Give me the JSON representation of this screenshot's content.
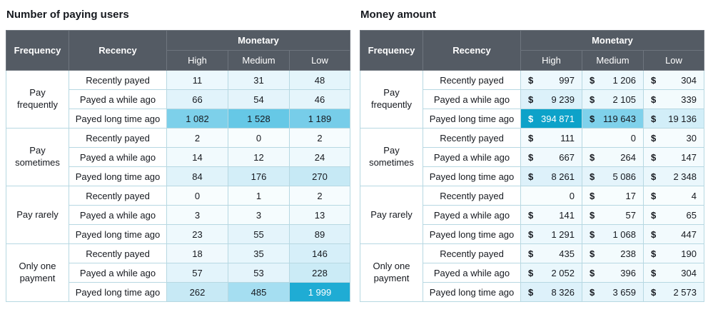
{
  "colors": {
    "header_bg": "#545b64",
    "header_text": "#ffffff",
    "grid_border": "#b7d8e2",
    "header_border": "#6e757e",
    "max_cell_left": "#1facd4",
    "max_cell_right": "#0da2c9",
    "text": "#16191f"
  },
  "tables": [
    {
      "title": "Number of paying users",
      "headers": {
        "frequency": "Frequency",
        "recency": "Recency",
        "monetary": "Monetary",
        "levels": [
          "High",
          "Medium",
          "Low"
        ]
      },
      "accounting": false,
      "groups": [
        {
          "label": "Pay frequently",
          "rows": [
            {
              "label": "Recently payed",
              "cells": [
                {
                  "t": "11",
                  "bg": "#ecf8fd"
                },
                {
                  "t": "31",
                  "bg": "#e8f6fc"
                },
                {
                  "t": "48",
                  "bg": "#e4f5fb"
                }
              ]
            },
            {
              "label": "Payed a while ago",
              "cells": [
                {
                  "t": "66",
                  "bg": "#e1f3fb"
                },
                {
                  "t": "54",
                  "bg": "#e4f4fb"
                },
                {
                  "t": "46",
                  "bg": "#e5f5fb"
                }
              ]
            },
            {
              "label": "Payed long time ago",
              "cells": [
                {
                  "t": "1 082",
                  "bg": "#7dd0ea"
                },
                {
                  "t": "1 528",
                  "bg": "#66c8e6"
                },
                {
                  "t": "1 189",
                  "bg": "#77cde9"
                }
              ]
            }
          ]
        },
        {
          "label": "Pay sometimes",
          "rows": [
            {
              "label": "Recently payed",
              "cells": [
                {
                  "t": "2",
                  "bg": "#f6fcfe"
                },
                {
                  "t": "0",
                  "bg": "#f8fdfe"
                },
                {
                  "t": "2",
                  "bg": "#f6fcfe"
                }
              ]
            },
            {
              "label": "Payed a while ago",
              "cells": [
                {
                  "t": "14",
                  "bg": "#f1fafd"
                },
                {
                  "t": "12",
                  "bg": "#f2fafd"
                },
                {
                  "t": "24",
                  "bg": "#eef9fd"
                }
              ]
            },
            {
              "label": "Payed long time ago",
              "cells": [
                {
                  "t": "84",
                  "bg": "#e0f3fa"
                },
                {
                  "t": "176",
                  "bg": "#d3eef8"
                },
                {
                  "t": "270",
                  "bg": "#c6e9f5"
                }
              ]
            }
          ]
        },
        {
          "label": "Pay rarely",
          "rows": [
            {
              "label": "Recently payed",
              "cells": [
                {
                  "t": "0",
                  "bg": "#f8fdfe"
                },
                {
                  "t": "1",
                  "bg": "#f7fdfe"
                },
                {
                  "t": "2",
                  "bg": "#f6fcfe"
                }
              ]
            },
            {
              "label": "Payed a while ago",
              "cells": [
                {
                  "t": "3",
                  "bg": "#f5fcfe"
                },
                {
                  "t": "3",
                  "bg": "#f5fcfe"
                },
                {
                  "t": "13",
                  "bg": "#f1fafd"
                }
              ]
            },
            {
              "label": "Payed long time ago",
              "cells": [
                {
                  "t": "23",
                  "bg": "#eef9fd"
                },
                {
                  "t": "55",
                  "bg": "#e4f4fb"
                },
                {
                  "t": "89",
                  "bg": "#def2fa"
                }
              ]
            }
          ]
        },
        {
          "label": "Only one payment",
          "rows": [
            {
              "label": "Recently payed",
              "cells": [
                {
                  "t": "18",
                  "bg": "#f0f9fd"
                },
                {
                  "t": "35",
                  "bg": "#e7f6fc"
                },
                {
                  "t": "146",
                  "bg": "#d6eff9"
                }
              ]
            },
            {
              "label": "Payed a while ago",
              "cells": [
                {
                  "t": "57",
                  "bg": "#e3f4fb"
                },
                {
                  "t": "53",
                  "bg": "#e4f4fb"
                },
                {
                  "t": "228",
                  "bg": "#cbebf6"
                }
              ]
            },
            {
              "label": "Payed long time ago",
              "cells": [
                {
                  "t": "262",
                  "bg": "#c7e9f5"
                },
                {
                  "t": "485",
                  "bg": "#a5def1"
                },
                {
                  "t": "1 999",
                  "bg": "#1facd4",
                  "fg": "#ffffff"
                }
              ]
            }
          ]
        }
      ]
    },
    {
      "title": "Money amount",
      "headers": {
        "frequency": "Frequency",
        "recency": "Recency",
        "monetary": "Monetary",
        "levels": [
          "High",
          "Medium",
          "Low"
        ]
      },
      "accounting": true,
      "groups": [
        {
          "label": "Pay frequently",
          "rows": [
            {
              "label": "Recently payed",
              "cells": [
                {
                  "c": "$",
                  "t": "997",
                  "bg": "#edf8fd"
                },
                {
                  "c": "$",
                  "t": "1 206",
                  "bg": "#ecf8fd"
                },
                {
                  "c": "$",
                  "t": "304",
                  "bg": "#f3fbfd"
                }
              ]
            },
            {
              "label": "Payed a while ago",
              "cells": [
                {
                  "c": "$",
                  "t": "9 239",
                  "bg": "#dcf1fa"
                },
                {
                  "c": "$",
                  "t": "2 105",
                  "bg": "#e9f7fc"
                },
                {
                  "c": "$",
                  "t": "339",
                  "bg": "#f3fbfd"
                }
              ]
            },
            {
              "label": "Payed long time ago",
              "cells": [
                {
                  "c": "$",
                  "t": "394 871",
                  "bg": "#0da2c9",
                  "fg": "#ffffff"
                },
                {
                  "c": "$",
                  "t": "119 643",
                  "bg": "#7fd1eb"
                },
                {
                  "c": "$",
                  "t": "19 136",
                  "bg": "#d2eef8"
                }
              ]
            }
          ]
        },
        {
          "label": "Pay sometimes",
          "rows": [
            {
              "label": "Recently payed",
              "cells": [
                {
                  "c": "$",
                  "t": "111",
                  "bg": "#f4fbfe"
                },
                {
                  "t": "0",
                  "bg": "#f8fdfe"
                },
                {
                  "c": "$",
                  "t": "30",
                  "bg": "#f6fcfe"
                }
              ]
            },
            {
              "label": "Payed a while ago",
              "cells": [
                {
                  "c": "$",
                  "t": "667",
                  "bg": "#f0f9fd"
                },
                {
                  "c": "$",
                  "t": "264",
                  "bg": "#f3fbfd"
                },
                {
                  "c": "$",
                  "t": "147",
                  "bg": "#f4fbfe"
                }
              ]
            },
            {
              "label": "Payed long time ago",
              "cells": [
                {
                  "c": "$",
                  "t": "8 261",
                  "bg": "#ddf1fa"
                },
                {
                  "c": "$",
                  "t": "5 086",
                  "bg": "#e4f4fb"
                },
                {
                  "c": "$",
                  "t": "2 348",
                  "bg": "#eaf7fc"
                }
              ]
            }
          ]
        },
        {
          "label": "Pay rarely",
          "rows": [
            {
              "label": "Recently payed",
              "cells": [
                {
                  "t": "0",
                  "bg": "#f8fdfe"
                },
                {
                  "c": "$",
                  "t": "17",
                  "bg": "#f7fdfe"
                },
                {
                  "c": "$",
                  "t": "4",
                  "bg": "#f8fdfe"
                }
              ]
            },
            {
              "label": "Payed a while ago",
              "cells": [
                {
                  "c": "$",
                  "t": "141",
                  "bg": "#f4fbfe"
                },
                {
                  "c": "$",
                  "t": "57",
                  "bg": "#f6fcfe"
                },
                {
                  "c": "$",
                  "t": "65",
                  "bg": "#f6fcfe"
                }
              ]
            },
            {
              "label": "Payed long time ago",
              "cells": [
                {
                  "c": "$",
                  "t": "1 291",
                  "bg": "#ecf8fd"
                },
                {
                  "c": "$",
                  "t": "1 068",
                  "bg": "#edf8fd"
                },
                {
                  "c": "$",
                  "t": "447",
                  "bg": "#f2fafd"
                }
              ]
            }
          ]
        },
        {
          "label": "Only one payment",
          "rows": [
            {
              "label": "Recently payed",
              "cells": [
                {
                  "c": "$",
                  "t": "435",
                  "bg": "#f2fafd"
                },
                {
                  "c": "$",
                  "t": "238",
                  "bg": "#f3fbfd"
                },
                {
                  "c": "$",
                  "t": "190",
                  "bg": "#f4fbfe"
                }
              ]
            },
            {
              "label": "Payed a while ago",
              "cells": [
                {
                  "c": "$",
                  "t": "2 052",
                  "bg": "#e9f7fc"
                },
                {
                  "c": "$",
                  "t": "396",
                  "bg": "#f2fafd"
                },
                {
                  "c": "$",
                  "t": "304",
                  "bg": "#f3fbfd"
                }
              ]
            },
            {
              "label": "Payed long time ago",
              "cells": [
                {
                  "c": "$",
                  "t": "8 326",
                  "bg": "#ddf1fa"
                },
                {
                  "c": "$",
                  "t": "3 659",
                  "bg": "#e6f5fb"
                },
                {
                  "c": "$",
                  "t": "2 573",
                  "bg": "#e9f7fc"
                }
              ]
            }
          ]
        }
      ]
    }
  ],
  "chart_data": [
    {
      "type": "heatmap",
      "title": "Number of paying users",
      "x_labels": [
        "High",
        "Medium",
        "Low"
      ],
      "x_axis_group": "Monetary",
      "y_groups": [
        {
          "frequency": "Pay frequently",
          "rows": [
            {
              "recency": "Recently payed",
              "values": [
                11,
                31,
                48
              ]
            },
            {
              "recency": "Payed a while ago",
              "values": [
                66,
                54,
                46
              ]
            },
            {
              "recency": "Payed long time ago",
              "values": [
                1082,
                1528,
                1189
              ]
            }
          ]
        },
        {
          "frequency": "Pay sometimes",
          "rows": [
            {
              "recency": "Recently payed",
              "values": [
                2,
                0,
                2
              ]
            },
            {
              "recency": "Payed a while ago",
              "values": [
                14,
                12,
                24
              ]
            },
            {
              "recency": "Payed long time ago",
              "values": [
                84,
                176,
                270
              ]
            }
          ]
        },
        {
          "frequency": "Pay rarely",
          "rows": [
            {
              "recency": "Recently payed",
              "values": [
                0,
                1,
                2
              ]
            },
            {
              "recency": "Payed a while ago",
              "values": [
                3,
                3,
                13
              ]
            },
            {
              "recency": "Payed long time ago",
              "values": [
                23,
                55,
                89
              ]
            }
          ]
        },
        {
          "frequency": "Only one payment",
          "rows": [
            {
              "recency": "Recently payed",
              "values": [
                18,
                35,
                146
              ]
            },
            {
              "recency": "Payed a while ago",
              "values": [
                57,
                53,
                228
              ]
            },
            {
              "recency": "Payed long time ago",
              "values": [
                262,
                485,
                1999
              ]
            }
          ]
        }
      ]
    },
    {
      "type": "heatmap",
      "title": "Money amount",
      "unit": "$",
      "x_labels": [
        "High",
        "Medium",
        "Low"
      ],
      "x_axis_group": "Monetary",
      "y_groups": [
        {
          "frequency": "Pay frequently",
          "rows": [
            {
              "recency": "Recently payed",
              "values": [
                997,
                1206,
                304
              ]
            },
            {
              "recency": "Payed a while ago",
              "values": [
                9239,
                2105,
                339
              ]
            },
            {
              "recency": "Payed long time ago",
              "values": [
                394871,
                119643,
                19136
              ]
            }
          ]
        },
        {
          "frequency": "Pay sometimes",
          "rows": [
            {
              "recency": "Recently payed",
              "values": [
                111,
                0,
                30
              ]
            },
            {
              "recency": "Payed a while ago",
              "values": [
                667,
                264,
                147
              ]
            },
            {
              "recency": "Payed long time ago",
              "values": [
                8261,
                5086,
                2348
              ]
            }
          ]
        },
        {
          "frequency": "Pay rarely",
          "rows": [
            {
              "recency": "Recently payed",
              "values": [
                0,
                17,
                4
              ]
            },
            {
              "recency": "Payed a while ago",
              "values": [
                141,
                57,
                65
              ]
            },
            {
              "recency": "Payed long time ago",
              "values": [
                1291,
                1068,
                447
              ]
            }
          ]
        },
        {
          "frequency": "Only one payment",
          "rows": [
            {
              "recency": "Recently payed",
              "values": [
                435,
                238,
                190
              ]
            },
            {
              "recency": "Payed a while ago",
              "values": [
                2052,
                396,
                304
              ]
            },
            {
              "recency": "Payed long time ago",
              "values": [
                8326,
                3659,
                2573
              ]
            }
          ]
        }
      ]
    }
  ]
}
